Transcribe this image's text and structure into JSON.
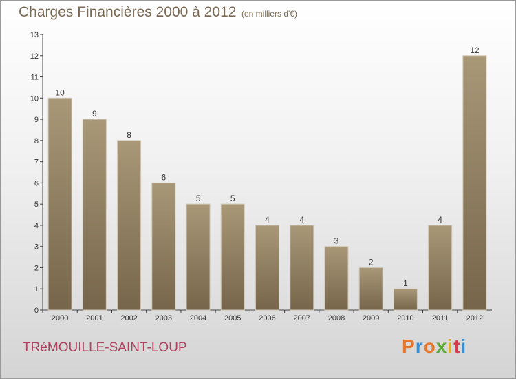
{
  "header": {
    "title": "Charges Financières 2000 à 2012",
    "unit": "(en milliers d'€)"
  },
  "footer": {
    "commune": "TRéMOUILLE-SAINT-LOUP",
    "logo": "Proxiti"
  },
  "colors": {
    "bar_top": "#a89878",
    "bar_bottom": "#76654a",
    "title": "#7a6a55",
    "commune": "#b04060",
    "logo_letters": [
      "#e8762b",
      "#3a8fd0",
      "#e8762b",
      "#5aaa35",
      "#e2b020",
      "#d43c4c",
      "#3a8fd0"
    ]
  },
  "chart_data": {
    "type": "bar",
    "title": "Charges Financières 2000 à 2012",
    "subtitle": "(en milliers d'€)",
    "categories": [
      "2000",
      "2001",
      "2002",
      "2003",
      "2004",
      "2005",
      "2006",
      "2007",
      "2008",
      "2009",
      "2010",
      "2011",
      "2012"
    ],
    "values": [
      10,
      9,
      8,
      6,
      5,
      5,
      4,
      4,
      3,
      2,
      1,
      4,
      12
    ],
    "value_labels": [
      "10",
      "9",
      "8",
      "6",
      "5",
      "5",
      "4",
      "4",
      "3",
      "2",
      "1",
      "4",
      "12"
    ],
    "yticks": [
      "0",
      "1",
      "2",
      "3",
      "4",
      "5",
      "6",
      "7",
      "8",
      "9",
      "10",
      "11",
      "12",
      "13"
    ],
    "ylim": [
      0,
      13
    ],
    "grid": false,
    "legend": "none"
  }
}
